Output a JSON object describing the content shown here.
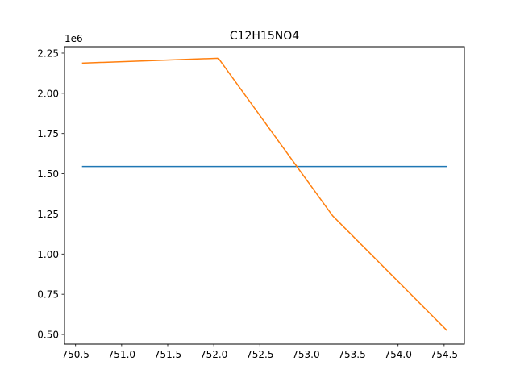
{
  "chart_data": {
    "type": "line",
    "title": "C12H15NO4",
    "xlabel": "",
    "ylabel": "",
    "y_scale_label": "1e6",
    "xlim": [
      750.38,
      754.72
    ],
    "ylim": [
      440000,
      2290000
    ],
    "x_ticks": [
      750.5,
      751.0,
      751.5,
      752.0,
      752.5,
      753.0,
      753.5,
      754.0,
      754.5
    ],
    "x_tick_labels": [
      "750.5",
      "751.0",
      "751.5",
      "752.0",
      "752.5",
      "753.0",
      "753.5",
      "754.0",
      "754.5"
    ],
    "y_ticks": [
      500000,
      750000,
      1000000,
      1250000,
      1500000,
      1750000,
      2000000,
      2250000
    ],
    "y_tick_labels": [
      "0.50",
      "0.75",
      "1.00",
      "1.25",
      "1.50",
      "1.75",
      "2.00",
      "2.25"
    ],
    "grid": false,
    "series": [
      {
        "color": "#1f77b4",
        "x": [
          750.57,
          754.53
        ],
        "y": [
          1545000,
          1545000
        ]
      },
      {
        "color": "#ff7f0e",
        "x": [
          750.57,
          752.05,
          753.29,
          754.53
        ],
        "y": [
          2188000,
          2218000,
          1238000,
          525000
        ]
      }
    ]
  }
}
